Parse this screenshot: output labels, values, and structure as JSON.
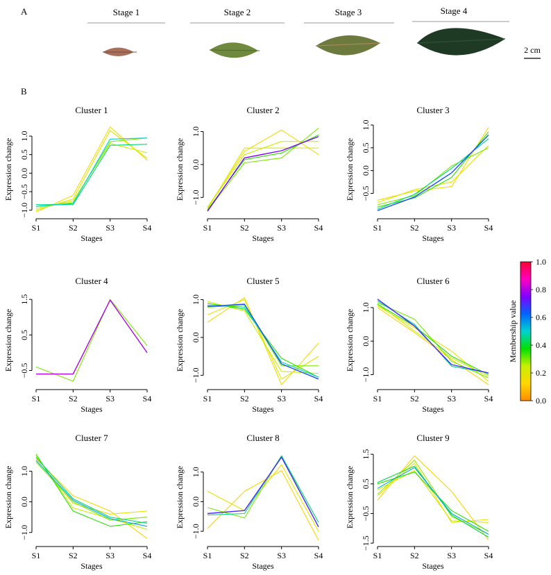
{
  "panel_a": {
    "label": "A",
    "stages": [
      {
        "label": "Stage 1",
        "leaf_color": "#a8705a",
        "leaf_vein": "#7a4a3a"
      },
      {
        "label": "Stage 2",
        "leaf_color": "#6f8a3e",
        "leaf_vein": "#4e6a28"
      },
      {
        "label": "Stage 3",
        "leaf_color": "#6d7a3e",
        "leaf_vein": "#a88a5a"
      },
      {
        "label": "Stage 4",
        "leaf_color": "#1e3a24",
        "leaf_vein": "#2e5236"
      }
    ],
    "scale_label": "2 cm"
  },
  "panel_b": {
    "label": "B"
  },
  "colorbar": {
    "title": "Membership value",
    "ticks": [
      "0.0",
      "0.2",
      "0.4",
      "0.6",
      "0.8",
      "1.0"
    ],
    "stops": [
      "#ff8c00",
      "#ffd700",
      "#c8f000",
      "#00e000",
      "#00d2d2",
      "#0064ff",
      "#8000ff",
      "#ff00c0",
      "#ff0033"
    ]
  },
  "chart_data": [
    {
      "type": "line",
      "title": "Cluster 1",
      "xlabel": "Stages",
      "ylabel": "Expression change",
      "categories": [
        "S1",
        "S2",
        "S3",
        "S4"
      ],
      "ylim": [
        -1.1,
        1.3
      ],
      "y_ticks": [
        -1.0,
        -0.5,
        0.0,
        0.5,
        1.0
      ],
      "y_tick_labels": [
        "−1.0",
        "−0.5",
        "0.0",
        "0.5",
        "1.0"
      ],
      "series": [
        {
          "membership": 0.15,
          "values": [
            -1.05,
            -0.6,
            1.25,
            0.35
          ]
        },
        {
          "membership": 0.2,
          "values": [
            -1.0,
            -0.7,
            1.15,
            0.4
          ]
        },
        {
          "membership": 0.25,
          "values": [
            -0.95,
            -0.75,
            0.8,
            0.55
          ]
        },
        {
          "membership": 0.3,
          "values": [
            -0.9,
            -0.8,
            0.85,
            0.95
          ]
        },
        {
          "membership": 0.45,
          "values": [
            -0.85,
            -0.85,
            0.75,
            0.78
          ]
        },
        {
          "membership": 0.5,
          "values": [
            -0.9,
            -0.82,
            0.92,
            0.95
          ]
        }
      ]
    },
    {
      "type": "line",
      "title": "Cluster 2",
      "xlabel": "Stages",
      "ylabel": "Expression change",
      "categories": [
        "S1",
        "S2",
        "S3",
        "S4"
      ],
      "ylim": [
        -1.5,
        1.2
      ],
      "y_ticks": [
        -1.0,
        0.0,
        1.0
      ],
      "y_tick_labels": [
        "−1.0",
        "0.0",
        "1.0"
      ],
      "series": [
        {
          "membership": 0.15,
          "values": [
            -1.3,
            0.4,
            1.05,
            0.3
          ]
        },
        {
          "membership": 0.2,
          "values": [
            -1.35,
            0.5,
            0.5,
            0.5
          ]
        },
        {
          "membership": 0.25,
          "values": [
            -1.3,
            0.3,
            0.7,
            0.7
          ]
        },
        {
          "membership": 0.3,
          "values": [
            -1.4,
            0.05,
            0.2,
            1.1
          ]
        },
        {
          "membership": 0.35,
          "values": [
            -1.38,
            0.15,
            0.35,
            0.9
          ]
        },
        {
          "membership": 0.75,
          "values": [
            -1.42,
            0.2,
            0.42,
            0.85
          ]
        }
      ]
    },
    {
      "type": "line",
      "title": "Cluster  3",
      "xlabel": "Stages",
      "ylabel": "Expression change",
      "categories": [
        "S1",
        "S2",
        "S3",
        "S4"
      ],
      "ylim": [
        -0.95,
        1.0
      ],
      "y_ticks": [
        -0.5,
        0.0,
        0.5,
        1.0
      ],
      "y_tick_labels": [
        "−0.5",
        "0.0",
        "0.5",
        "1.0"
      ],
      "series": [
        {
          "membership": 0.15,
          "values": [
            -0.65,
            -0.45,
            -0.35,
            0.95
          ]
        },
        {
          "membership": 0.2,
          "values": [
            -0.7,
            -0.42,
            -0.25,
            0.55
          ]
        },
        {
          "membership": 0.3,
          "values": [
            -0.75,
            -0.55,
            0.1,
            0.5
          ]
        },
        {
          "membership": 0.35,
          "values": [
            -0.8,
            -0.6,
            -0.15,
            0.85
          ]
        },
        {
          "membership": 0.45,
          "values": [
            -0.85,
            -0.52,
            0.05,
            0.7
          ]
        },
        {
          "membership": 0.65,
          "values": [
            -0.88,
            -0.58,
            -0.05,
            0.78
          ]
        }
      ]
    },
    {
      "type": "line",
      "title": "Cluster 4",
      "xlabel": "Stages",
      "ylabel": "Expression change",
      "categories": [
        "S1",
        "S2",
        "S3",
        "S4"
      ],
      "ylim": [
        -0.9,
        1.6
      ],
      "y_ticks": [
        -0.5,
        0.5,
        1.5
      ],
      "y_tick_labels": [
        "−0.5",
        "0.5",
        "1.5"
      ],
      "series": [
        {
          "membership": 0.3,
          "values": [
            -0.4,
            -0.8,
            1.5,
            0.2
          ]
        },
        {
          "membership": 0.8,
          "values": [
            -0.6,
            -0.6,
            1.48,
            0.0
          ]
        }
      ]
    },
    {
      "type": "line",
      "title": "Cluster 5",
      "xlabel": "Stages",
      "ylabel": "Expression change",
      "categories": [
        "S1",
        "S2",
        "S3",
        "S4"
      ],
      "ylim": [
        -1.25,
        1.1
      ],
      "y_ticks": [
        -1.0,
        0.0,
        1.0
      ],
      "y_tick_labels": [
        "−1.0",
        "0.0",
        "1.0"
      ],
      "series": [
        {
          "membership": 0.15,
          "values": [
            0.4,
            1.05,
            -1.25,
            -0.15
          ]
        },
        {
          "membership": 0.2,
          "values": [
            0.6,
            1.0,
            -1.1,
            -0.5
          ]
        },
        {
          "membership": 0.25,
          "values": [
            0.95,
            0.7,
            -0.9,
            -0.95
          ]
        },
        {
          "membership": 0.3,
          "values": [
            0.8,
            0.85,
            -0.75,
            -0.75
          ]
        },
        {
          "membership": 0.35,
          "values": [
            0.9,
            0.75,
            -0.55,
            -1.05
          ]
        },
        {
          "membership": 0.5,
          "values": [
            0.85,
            0.8,
            -0.65,
            -1.05
          ]
        },
        {
          "membership": 0.65,
          "values": [
            0.82,
            0.88,
            -0.7,
            -1.1
          ]
        }
      ]
    },
    {
      "type": "line",
      "title": "Cluster  6",
      "xlabel": "Stages",
      "ylabel": "Expression change",
      "categories": [
        "S1",
        "S2",
        "S3",
        "S4"
      ],
      "ylim": [
        -1.3,
        1.35
      ],
      "y_ticks": [
        -1.0,
        0.0,
        1.0
      ],
      "y_tick_labels": [
        "−1.0",
        "0.0",
        "1.0"
      ],
      "series": [
        {
          "membership": 0.12,
          "values": [
            1.0,
            0.25,
            -0.55,
            -1.3
          ]
        },
        {
          "membership": 0.18,
          "values": [
            1.05,
            0.4,
            -0.3,
            -1.2
          ]
        },
        {
          "membership": 0.25,
          "values": [
            1.1,
            0.3,
            -0.5,
            -1.05
          ]
        },
        {
          "membership": 0.3,
          "values": [
            1.15,
            0.65,
            -0.6,
            -1.1
          ]
        },
        {
          "membership": 0.35,
          "values": [
            1.1,
            0.45,
            -0.45,
            -1.0
          ]
        },
        {
          "membership": 0.45,
          "values": [
            1.2,
            0.5,
            -0.75,
            -0.95
          ]
        },
        {
          "membership": 0.7,
          "values": [
            1.25,
            0.45,
            -0.7,
            -0.95
          ]
        }
      ]
    },
    {
      "type": "line",
      "title": "Cluster 7",
      "xlabel": "Stages",
      "ylabel": "Expression change",
      "categories": [
        "S1",
        "S2",
        "S3",
        "S4"
      ],
      "ylim": [
        -1.3,
        1.6
      ],
      "y_ticks": [
        -1.0,
        0.0,
        1.0
      ],
      "y_tick_labels": [
        "−1.0",
        "0.0",
        "1.0"
      ],
      "series": [
        {
          "membership": 0.12,
          "values": [
            1.4,
            0.2,
            -0.3,
            -1.2
          ]
        },
        {
          "membership": 0.18,
          "values": [
            1.45,
            -0.05,
            -0.4,
            -0.3
          ]
        },
        {
          "membership": 0.25,
          "values": [
            1.5,
            -0.2,
            -0.55,
            -0.9
          ]
        },
        {
          "membership": 0.3,
          "values": [
            1.3,
            0.0,
            -0.6,
            -0.5
          ]
        },
        {
          "membership": 0.35,
          "values": [
            1.55,
            -0.3,
            -0.8,
            -0.65
          ]
        },
        {
          "membership": 0.45,
          "values": [
            1.45,
            0.1,
            -0.5,
            -0.7
          ]
        },
        {
          "membership": 0.55,
          "values": [
            1.35,
            0.05,
            -0.55,
            -0.8
          ]
        }
      ]
    },
    {
      "type": "line",
      "title": "Cluster 8",
      "xlabel": "Stages",
      "ylabel": "Expression change",
      "categories": [
        "S1",
        "S2",
        "S3",
        "S4"
      ],
      "ylim": [
        -1.35,
        1.65
      ],
      "y_ticks": [
        -1.0,
        0.0,
        1.0
      ],
      "y_tick_labels": [
        "−1.0",
        "0.0",
        "1.0"
      ],
      "series": [
        {
          "membership": 0.12,
          "values": [
            -0.9,
            0.35,
            1.05,
            -1.3
          ]
        },
        {
          "membership": 0.18,
          "values": [
            0.35,
            -0.3,
            1.25,
            -1.0
          ]
        },
        {
          "membership": 0.3,
          "values": [
            -0.2,
            -0.55,
            1.55,
            -0.85
          ]
        },
        {
          "membership": 0.45,
          "values": [
            -0.45,
            -0.4,
            1.55,
            -0.7
          ]
        },
        {
          "membership": 0.7,
          "values": [
            -0.4,
            -0.3,
            1.5,
            -0.85
          ]
        }
      ]
    },
    {
      "type": "line",
      "title": "Cluster  9",
      "xlabel": "Stages",
      "ylabel": "Expression change",
      "categories": [
        "S1",
        "S2",
        "S3",
        "S4"
      ],
      "ylim": [
        -1.45,
        1.55
      ],
      "y_ticks": [
        -1.5,
        -0.5,
        0.5,
        1.5
      ],
      "y_tick_labels": [
        "−1.5",
        "−0.5",
        "0.5",
        "1.5"
      ],
      "series": [
        {
          "membership": 0.12,
          "values": [
            -0.05,
            1.45,
            0.25,
            -1.4
          ]
        },
        {
          "membership": 0.18,
          "values": [
            0.1,
            1.2,
            -0.8,
            -0.7
          ]
        },
        {
          "membership": 0.22,
          "values": [
            0.3,
            0.95,
            -0.75,
            -0.8
          ]
        },
        {
          "membership": 0.28,
          "values": [
            0.15,
            1.3,
            -0.6,
            -1.2
          ]
        },
        {
          "membership": 0.35,
          "values": [
            0.5,
            0.9,
            -0.4,
            -1.1
          ]
        },
        {
          "membership": 0.42,
          "values": [
            0.55,
            1.1,
            -0.55,
            -1.3
          ]
        },
        {
          "membership": 0.55,
          "values": [
            0.35,
            1.05,
            -0.5,
            -1.2
          ]
        }
      ]
    }
  ]
}
